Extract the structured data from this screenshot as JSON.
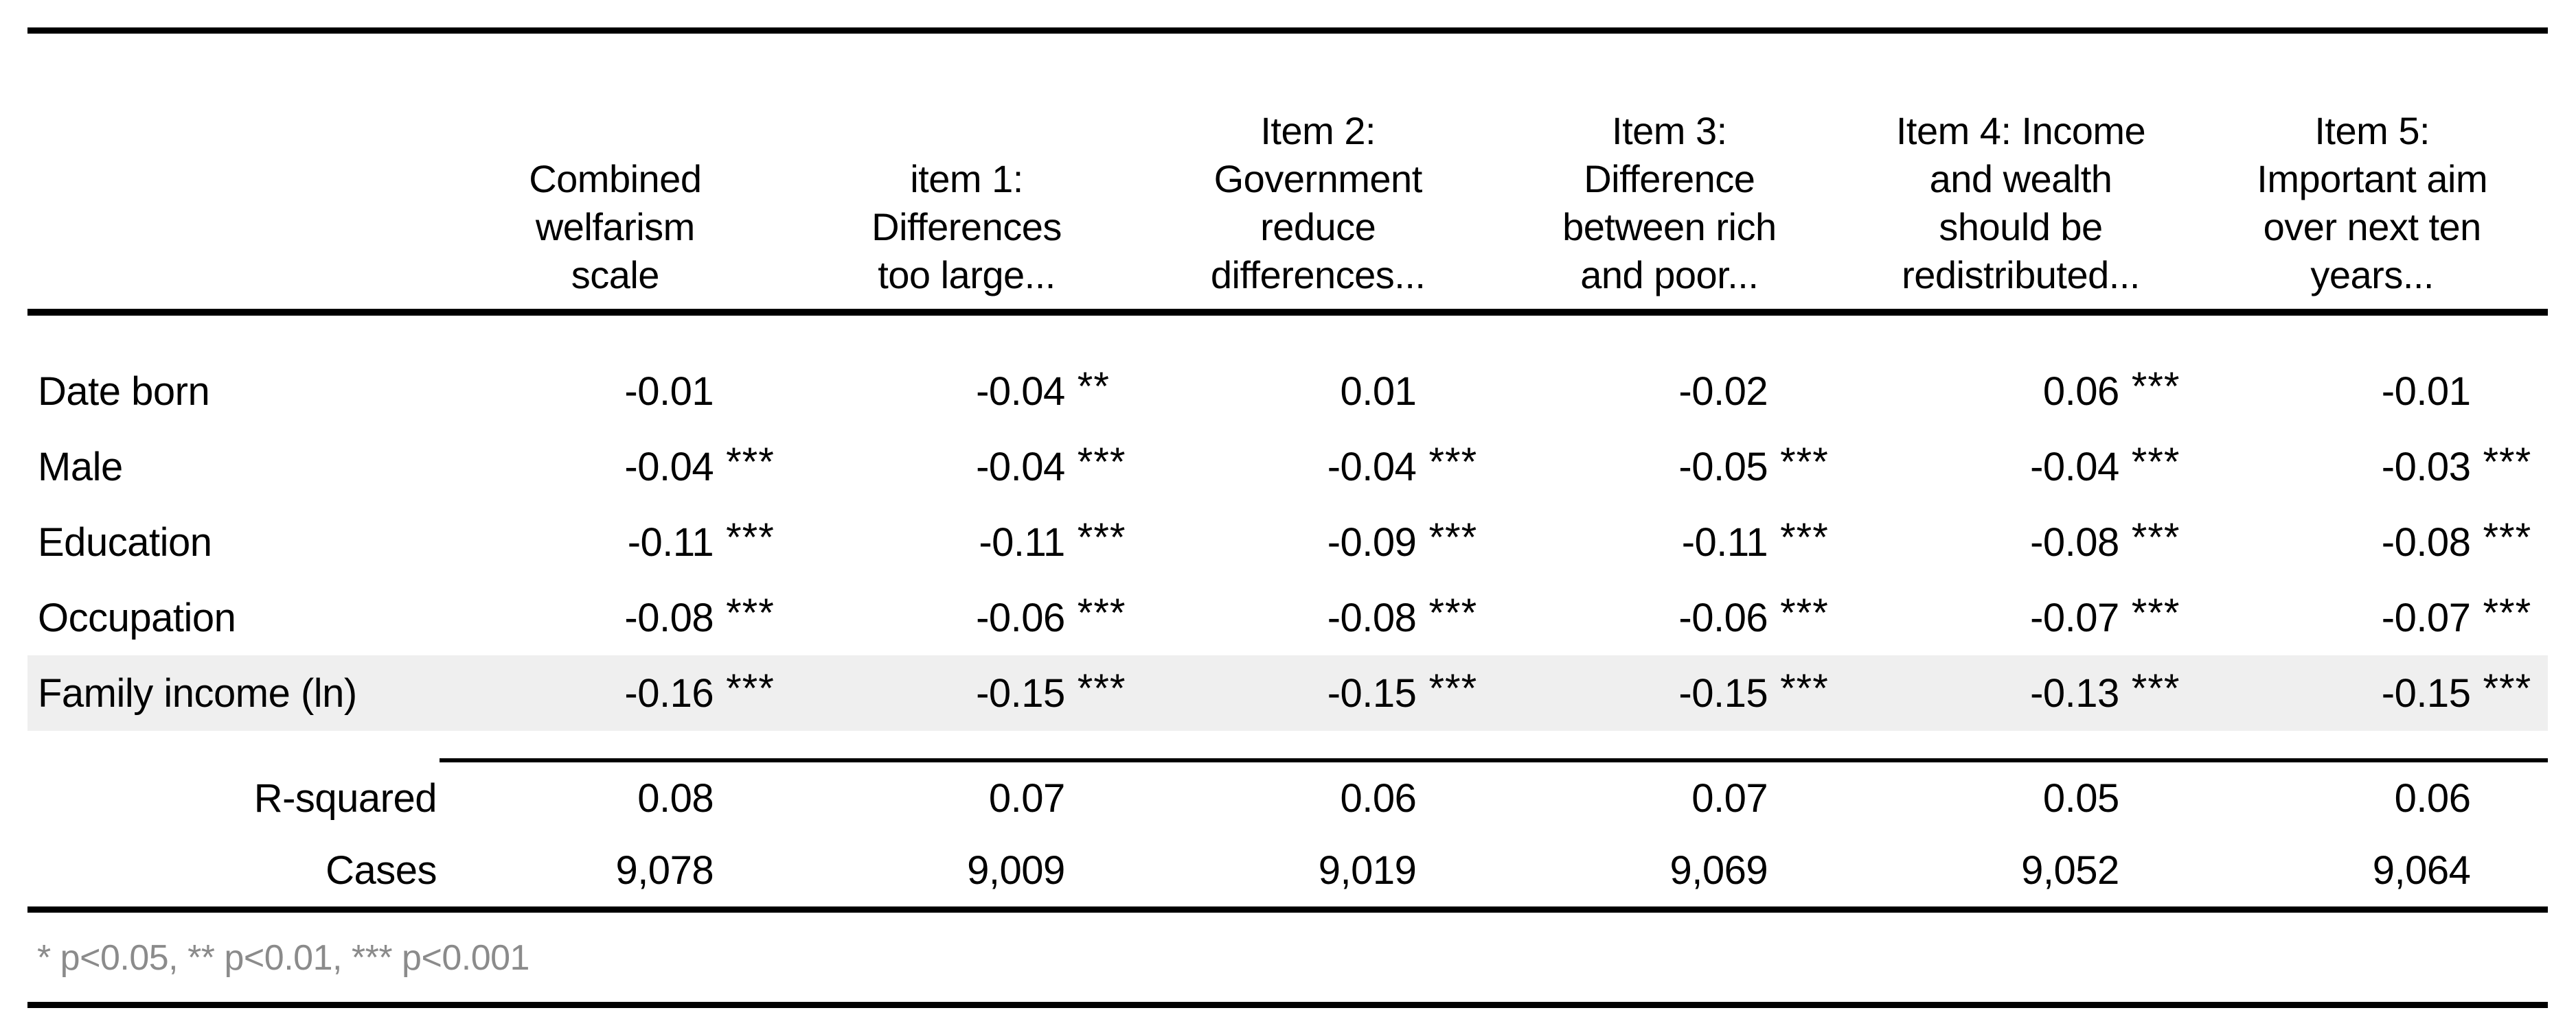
{
  "table": {
    "columns": [
      {
        "label": "Combined\nwelfarism\nscale"
      },
      {
        "label": "item 1:\nDifferences\ntoo large..."
      },
      {
        "label": "Item 2:\nGovernment\nreduce\ndifferences..."
      },
      {
        "label": "Item 3:\nDifference\nbetween rich\nand poor..."
      },
      {
        "label": "Item 4: Income\nand wealth\nshould be\nredistributed..."
      },
      {
        "label": "Item 5:\nImportant aim\nover next ten\nyears..."
      }
    ],
    "rows": [
      {
        "label": "Date born",
        "cells": [
          {
            "value": "-0.01",
            "stars": ""
          },
          {
            "value": "-0.04",
            "stars": "**"
          },
          {
            "value": "0.01",
            "stars": ""
          },
          {
            "value": "-0.02",
            "stars": ""
          },
          {
            "value": "0.06",
            "stars": "***"
          },
          {
            "value": "-0.01",
            "stars": ""
          }
        ]
      },
      {
        "label": "Male",
        "cells": [
          {
            "value": "-0.04",
            "stars": "***"
          },
          {
            "value": "-0.04",
            "stars": "***"
          },
          {
            "value": "-0.04",
            "stars": "***"
          },
          {
            "value": "-0.05",
            "stars": "***"
          },
          {
            "value": "-0.04",
            "stars": "***"
          },
          {
            "value": "-0.03",
            "stars": "***"
          }
        ]
      },
      {
        "label": "Education",
        "cells": [
          {
            "value": "-0.11",
            "stars": "***"
          },
          {
            "value": "-0.11",
            "stars": "***"
          },
          {
            "value": "-0.09",
            "stars": "***"
          },
          {
            "value": "-0.11",
            "stars": "***"
          },
          {
            "value": "-0.08",
            "stars": "***"
          },
          {
            "value": "-0.08",
            "stars": "***"
          }
        ]
      },
      {
        "label": "Occupation",
        "cells": [
          {
            "value": "-0.08",
            "stars": "***"
          },
          {
            "value": "-0.06",
            "stars": "***"
          },
          {
            "value": "-0.08",
            "stars": "***"
          },
          {
            "value": "-0.06",
            "stars": "***"
          },
          {
            "value": "-0.07",
            "stars": "***"
          },
          {
            "value": "-0.07",
            "stars": "***"
          }
        ]
      },
      {
        "label": "Family income (ln)",
        "cells": [
          {
            "value": "-0.16",
            "stars": "***"
          },
          {
            "value": "-0.15",
            "stars": "***"
          },
          {
            "value": "-0.15",
            "stars": "***"
          },
          {
            "value": "-0.15",
            "stars": "***"
          },
          {
            "value": "-0.13",
            "stars": "***"
          },
          {
            "value": "-0.15",
            "stars": "***"
          }
        ]
      }
    ],
    "summary_rows": [
      {
        "label": "R-squared",
        "values": [
          "0.08",
          "0.07",
          "0.06",
          "0.07",
          "0.05",
          "0.06"
        ]
      },
      {
        "label": "Cases",
        "values": [
          "9,078",
          "9,009",
          "9,019",
          "9,069",
          "9,052",
          "9,064"
        ]
      }
    ],
    "footnote": "* p<0.05, ** p<0.01, *** p<0.001"
  },
  "colors": {
    "highlight_row": "#efefef",
    "footnote_gray": "#8b8b8b",
    "rule": "#000000",
    "background": "#ffffff"
  }
}
